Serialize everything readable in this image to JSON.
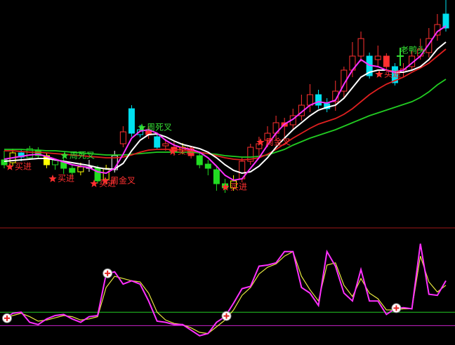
{
  "chart_data": {
    "type": "candlestick",
    "background": "#000000",
    "separator_color": "#a01818",
    "ylim": [
      0,
      325
    ],
    "categories": [
      null,
      null,
      null,
      null,
      null,
      null,
      null,
      null,
      null,
      null,
      null,
      null,
      null,
      null,
      null,
      null,
      null,
      null,
      null,
      null,
      null,
      null,
      null,
      null,
      null,
      null,
      null,
      null,
      null,
      null,
      null,
      null,
      null,
      null,
      null,
      null,
      null,
      null,
      null,
      null,
      null,
      null,
      null,
      null,
      null,
      null,
      null,
      null,
      null,
      null,
      null,
      null,
      null
    ],
    "candles": {
      "open": [
        97,
        93,
        107,
        100,
        110,
        103,
        90,
        95,
        85,
        80,
        87,
        85,
        69,
        83,
        120,
        170,
        133,
        139,
        130,
        117,
        115,
        111,
        113,
        103,
        91,
        83,
        63,
        57,
        70,
        95,
        113,
        125,
        135,
        150,
        147,
        160,
        175,
        190,
        177,
        180,
        195,
        225,
        245,
        245,
        240,
        245,
        230,
        225,
        230,
        245,
        250,
        275,
        305
      ],
      "high": [
        110,
        113,
        111,
        117,
        115,
        107,
        99,
        100,
        89,
        93,
        97,
        89,
        90,
        110,
        145,
        175,
        147,
        145,
        135,
        127,
        123,
        121,
        117,
        109,
        97,
        87,
        70,
        75,
        100,
        120,
        130,
        145,
        160,
        157,
        170,
        190,
        205,
        197,
        185,
        210,
        230,
        265,
        280,
        250,
        260,
        249,
        235,
        235,
        253,
        270,
        285,
        305,
        325
      ],
      "low": [
        85,
        89,
        95,
        97,
        99,
        85,
        83,
        77,
        73,
        75,
        80,
        63,
        63,
        79,
        115,
        130,
        129,
        127,
        113,
        110,
        103,
        105,
        99,
        85,
        75,
        53,
        50,
        53,
        65,
        90,
        103,
        115,
        125,
        130,
        140,
        153,
        165,
        170,
        165,
        167,
        185,
        215,
        237,
        213,
        230,
        225,
        203,
        215,
        225,
        240,
        243,
        267,
        280
      ],
      "close": [
        90,
        107,
        101,
        113,
        103,
        90,
        97,
        85,
        79,
        87,
        85,
        67,
        85,
        103,
        137,
        135,
        140,
        133,
        115,
        120,
        109,
        115,
        103,
        90,
        85,
        63,
        57,
        67,
        95,
        115,
        120,
        135,
        150,
        145,
        160,
        175,
        190,
        175,
        170,
        195,
        225,
        245,
        270,
        217,
        245,
        230,
        207,
        227,
        245,
        255,
        270,
        290,
        285
      ],
      "colors": [
        "#22dd22",
        "#ffff00",
        "#00e0f0",
        "#22dd22",
        "#22dd22",
        "#ffff00",
        "#22dd22",
        "#22dd22",
        "#22dd22",
        "#ffff00",
        "#ffffff",
        "#22dd22",
        "#ffff00",
        "#ffffff",
        "#ff3030",
        "#00e0f0",
        "#00e0f0",
        "#ff3030",
        "#00e0f0",
        "#ff3030",
        "#ff3030",
        "#ffff00",
        "#ff3030",
        "#22dd22",
        "#22dd22",
        "#22dd22",
        "#22dd22",
        "#ffff00",
        "#ff3030",
        "#ff3030",
        "#ff3030",
        "#ff3030",
        "#ff3030",
        "#ff3030",
        "#ff3030",
        "#ff3030",
        "#ff3030",
        "#00e0f0",
        "#00e0f0",
        "#ff3030",
        "#ff3030",
        "#ff3030",
        "#ff3030",
        "#00e0f0",
        "#ff3030",
        "#ff3030",
        "#00e0f0",
        "#ff3030",
        "#ff3030",
        "#ff3030",
        "#ff3030",
        "#ff3030",
        "#00e0f0"
      ]
    },
    "series": [
      {
        "color": "#22cc22",
        "values": [
          112,
          112,
          112,
          111,
          111,
          110,
          110,
          109,
          108,
          107,
          106,
          105,
          104,
          104,
          104,
          105,
          106,
          107,
          108,
          108,
          108,
          108,
          108,
          107,
          106,
          105,
          103,
          102,
          101,
          101,
          102,
          104,
          108,
          112,
          118,
          123,
          128,
          132,
          136,
          140,
          145,
          150,
          155,
          160,
          164,
          168,
          172,
          176,
          180,
          186,
          194,
          204,
          212
        ]
      },
      {
        "color": "#e02020",
        "values": [
          110,
          110,
          109,
          108,
          108,
          107,
          106,
          105,
          104,
          103,
          102,
          101,
          100,
          100,
          101,
          104,
          108,
          111,
          112,
          112,
          112,
          111,
          110,
          108,
          106,
          103,
          100,
          98,
          97,
          98,
          100,
          105,
          112,
          120,
          128,
          135,
          142,
          148,
          152,
          156,
          162,
          170,
          180,
          190,
          198,
          205,
          210,
          215,
          222,
          228,
          235,
          245,
          255
        ]
      },
      {
        "color": "#ffffff",
        "values": [
          95,
          96,
          97,
          98,
          99,
          99,
          97,
          95,
          93,
          91,
          89,
          86,
          84,
          84,
          92,
          110,
          125,
          133,
          134,
          130,
          124,
          119,
          116,
          113,
          108,
          100,
          90,
          82,
          78,
          80,
          88,
          100,
          115,
          128,
          140,
          150,
          160,
          168,
          172,
          175,
          185,
          200,
          215,
          222,
          225,
          225,
          222,
          222,
          225,
          230,
          240,
          255,
          265
        ]
      },
      {
        "color": "#ff30ff",
        "values": [
          98,
          100,
          102,
          104,
          105,
          102,
          98,
          94,
          90,
          88,
          86,
          80,
          78,
          85,
          105,
          128,
          138,
          140,
          135,
          125,
          118,
          114,
          112,
          108,
          100,
          88,
          75,
          68,
          70,
          85,
          100,
          118,
          135,
          148,
          155,
          165,
          175,
          180,
          178,
          182,
          205,
          225,
          240,
          232,
          230,
          225,
          222,
          225,
          235,
          245,
          262,
          280,
          288
        ]
      }
    ],
    "annotations": [
      {
        "text": "买进",
        "color": "#ff3030"
      },
      {
        "text": "周死叉",
        "color": "#33dd33"
      },
      {
        "text": "买进",
        "color": "#ff3030"
      },
      {
        "text": "买进",
        "color": "#ff3030"
      },
      {
        "text": "周金叉",
        "color": "#ff3030"
      },
      {
        "text": "周死叉",
        "color": "#33dd33"
      },
      {
        "text": "买进",
        "color": "#ff3030"
      },
      {
        "text": "买进",
        "color": "#ff3030"
      },
      {
        "text": "周金叉",
        "color": "#ff3030"
      },
      {
        "text": "买进",
        "color": "#ff3030"
      },
      {
        "text": "老鸭头",
        "color": "#33dd33"
      }
    ],
    "indicator": {
      "ylim": [
        0,
        100
      ],
      "hlines": [
        {
          "value": 28,
          "color": "#22cc22"
        },
        {
          "value": 16,
          "color": "#cc22cc"
        }
      ],
      "series": [
        {
          "color": "#e8e840",
          "values": [
            23,
            25,
            27,
            24,
            20,
            21,
            23,
            25,
            24,
            21,
            22,
            24,
            50,
            60,
            58,
            56,
            55,
            45,
            28,
            21,
            18,
            17,
            14,
            10,
            9,
            15,
            21,
            30,
            43,
            50,
            62,
            68,
            71,
            78,
            82,
            60,
            48,
            38,
            70,
            72,
            52,
            42,
            58,
            45,
            40,
            30,
            30,
            31,
            31,
            78,
            55,
            46,
            52
          ]
        },
        {
          "color": "#ff30ff",
          "values": [
            22,
            27,
            28,
            19,
            17,
            22,
            25,
            26,
            22,
            19,
            24,
            25,
            62,
            64,
            53,
            56,
            53,
            38,
            20,
            19,
            17,
            17,
            12,
            7,
            9,
            19,
            24,
            36,
            49,
            51,
            69,
            70,
            72,
            82,
            82,
            50,
            45,
            34,
            82,
            69,
            45,
            38,
            66,
            38,
            38,
            26,
            31,
            32,
            31,
            89,
            44,
            43,
            56
          ]
        }
      ]
    }
  }
}
